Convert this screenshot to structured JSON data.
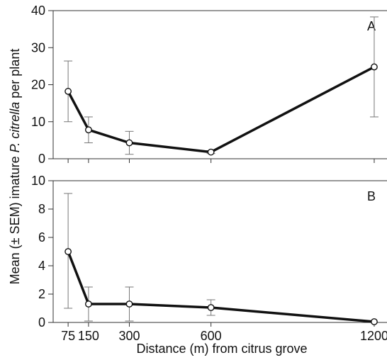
{
  "chart_data": {
    "type": "line",
    "xlabel": "Distance (m) from citrus grove",
    "ylabel_parts": [
      "Mean (± SEM) imature ",
      "P. citrella",
      " per plant"
    ],
    "x": [
      75,
      150,
      300,
      600,
      1200
    ],
    "x_tick_labels": [
      "75",
      "150",
      "300",
      "600",
      "1200"
    ],
    "xlim": [
      20,
      1260
    ],
    "panels": [
      {
        "label": "A",
        "ylim": [
          0,
          40
        ],
        "y_ticks": [
          0,
          10,
          20,
          30,
          40
        ],
        "series": [
          {
            "values": [
              18.2,
              7.8,
              4.3,
              1.8,
              24.8
            ],
            "err_upper": [
              26.4,
              11.3,
              7.4,
              2.2,
              38.3
            ],
            "err_lower": [
              10.0,
              4.3,
              1.2,
              1.4,
              11.3
            ]
          }
        ]
      },
      {
        "label": "B",
        "ylim": [
          0,
          10
        ],
        "y_ticks": [
          0,
          2,
          4,
          6,
          8,
          10
        ],
        "series": [
          {
            "values": [
              5.0,
              1.3,
              1.3,
              1.05,
              0.05
            ],
            "err_upper": [
              9.1,
              2.5,
              2.5,
              1.6,
              0.05
            ],
            "err_lower": [
              1.0,
              0.1,
              0.1,
              0.5,
              0.05
            ]
          }
        ]
      }
    ]
  }
}
